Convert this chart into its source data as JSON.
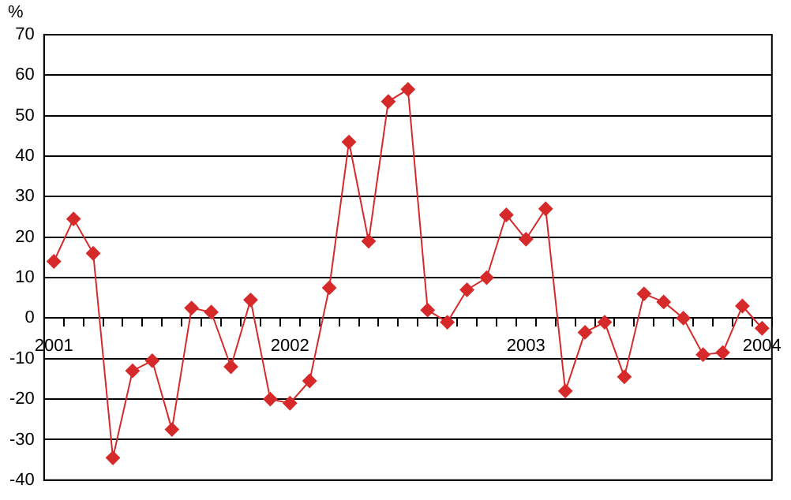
{
  "chart_data": {
    "type": "line",
    "ylabel": "%",
    "categories": [
      "2001",
      null,
      null,
      null,
      null,
      null,
      null,
      null,
      null,
      null,
      null,
      null,
      "2002",
      null,
      null,
      null,
      null,
      null,
      null,
      null,
      null,
      null,
      null,
      null,
      "2003",
      null,
      null,
      null,
      null,
      null,
      null,
      null,
      null,
      null,
      null,
      null,
      "2004"
    ],
    "series": [
      {
        "color": "#d62a2a",
        "values": [
          14,
          24.5,
          16,
          -34.5,
          -13,
          -10.5,
          -27.5,
          2.5,
          1.5,
          -12,
          4.5,
          -20,
          -21,
          -15.5,
          7.5,
          43.5,
          19,
          53.5,
          56.5,
          2,
          -1,
          7,
          10,
          25.5,
          19.5,
          27,
          -18,
          -3.5,
          -1,
          -14.5,
          6,
          4,
          0,
          -9,
          -8.5,
          3,
          -2.5
        ]
      }
    ],
    "ylim": [
      -40,
      70
    ],
    "yticks": [
      -40,
      -30,
      -20,
      -10,
      0,
      10,
      20,
      30,
      40,
      50,
      60,
      70
    ],
    "grid": "y",
    "legend": false,
    "marker": "diamond",
    "line_style": "solid"
  }
}
